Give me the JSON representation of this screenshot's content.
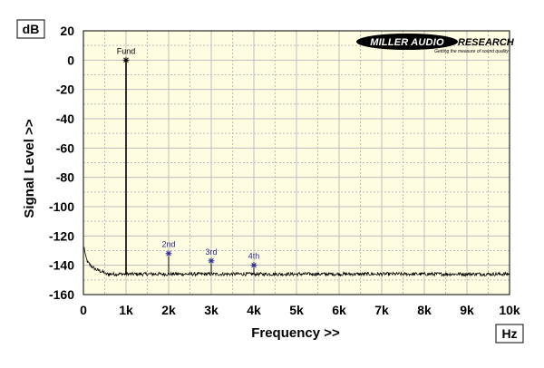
{
  "chart_data": {
    "type": "line",
    "title": "",
    "ylabel": "Signal Level >>",
    "xlabel": "Frequency >>",
    "y_unit": "dB",
    "x_unit": "Hz",
    "xlim": [
      0,
      10000
    ],
    "ylim": [
      -160,
      20
    ],
    "x_ticks": [
      0,
      1000,
      2000,
      3000,
      4000,
      5000,
      6000,
      7000,
      8000,
      9000,
      10000
    ],
    "x_tick_labels": [
      "0",
      "1k",
      "2k",
      "3k",
      "4k",
      "5k",
      "6k",
      "7k",
      "8k",
      "9k",
      "10k"
    ],
    "y_ticks": [
      20,
      0,
      -20,
      -40,
      -60,
      -80,
      -100,
      -120,
      -140,
      -160
    ],
    "y_tick_labels": [
      "20",
      "0",
      "-20",
      "-40",
      "-60",
      "-80",
      "-100",
      "-120",
      "-140",
      "-160"
    ],
    "grid": true,
    "series_color": "#000000",
    "noise_floor_db": -146,
    "low_freq_rise": [
      [
        20,
        -128
      ],
      [
        50,
        -134
      ],
      [
        100,
        -138
      ],
      [
        200,
        -141
      ],
      [
        300,
        -143
      ],
      [
        500,
        -145
      ]
    ],
    "peaks": [
      {
        "label": "Fund",
        "x": 1000,
        "y": 0,
        "color": "#000000"
      },
      {
        "label": "2nd",
        "x": 2000,
        "y": -132,
        "color": "#2a2a8c"
      },
      {
        "label": "3rd",
        "x": 3000,
        "y": -137,
        "color": "#2a2a8c"
      },
      {
        "label": "4th",
        "x": 4000,
        "y": -140,
        "color": "#2a2a8c"
      }
    ],
    "colors": {
      "plot_bg": "#fffde1",
      "grid": "#bdbdbd",
      "frame": "#000000",
      "annotation": "#2a2a8c"
    }
  },
  "logo": {
    "brand_left": "MILLER AUDIO",
    "brand_right": "RESEARCH",
    "tagline": "Getting the measure of sound quality"
  }
}
